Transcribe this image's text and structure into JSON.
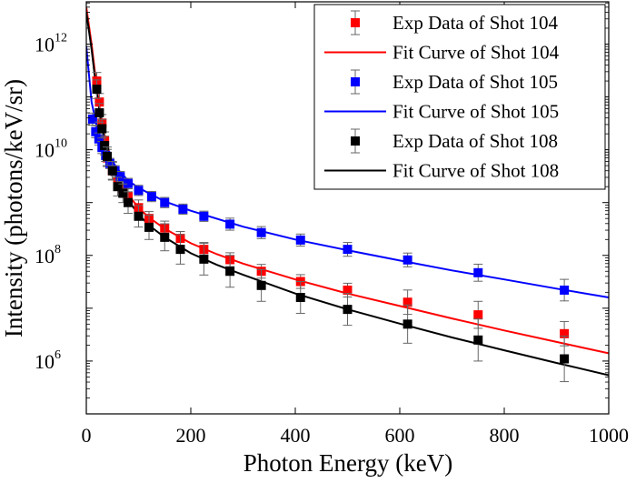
{
  "chart_data": {
    "type": "scatter",
    "xlabel": "Photon Energy (keV)",
    "ylabel": "Intensity (photons/keV/sr)",
    "xlim": [
      0,
      1000
    ],
    "ylim_log10": [
      5,
      12.8
    ],
    "y_scale": "log",
    "x_ticks": [
      0,
      200,
      400,
      600,
      800,
      1000
    ],
    "y_ticks": [
      {
        "value": 1000000,
        "base": "10",
        "exp": "6"
      },
      {
        "value": 100000000,
        "base": "10",
        "exp": "8"
      },
      {
        "value": 10000000000,
        "base": "10",
        "exp": "10"
      },
      {
        "value": 1000000000000,
        "base": "10",
        "exp": "12"
      }
    ],
    "grid": false,
    "legend_position": "top-right",
    "legend": [
      {
        "label": "Exp Data of Shot 104",
        "kind": "marker",
        "series": 0
      },
      {
        "label": "Fit Curve of Shot 104",
        "kind": "line",
        "series": 0
      },
      {
        "label": "Exp Data of Shot 105",
        "kind": "marker",
        "series": 1
      },
      {
        "label": "Fit Curve of Shot 105",
        "kind": "line",
        "series": 1
      },
      {
        "label": "Exp Data of Shot 108",
        "kind": "marker",
        "series": 2
      },
      {
        "label": "Fit Curve of Shot 108",
        "kind": "line",
        "series": 2
      }
    ],
    "series": [
      {
        "color": "#ff0000",
        "x": [
          20,
          25,
          30,
          35,
          40,
          50,
          60,
          70,
          80,
          100,
          120,
          150,
          180,
          225,
          275,
          335,
          410,
          500,
          615,
          750,
          915
        ],
        "y": [
          200000000000.0,
          80000000000.0,
          32000000000.0,
          15000000000.0,
          7000000000.0,
          4000000000.0,
          2500000000.0,
          1800000000.0,
          1300000000.0,
          800000000.0,
          500000000.0,
          330000000.0,
          210000000.0,
          130000000.0,
          83000000.0,
          50000000.0,
          32000000.0,
          22000000.0,
          13000000.0,
          7500000.0,
          3300000.0
        ],
        "fit_x": [
          0,
          10,
          20,
          30,
          40,
          50,
          60,
          80,
          100,
          120,
          150,
          200,
          250,
          300,
          400,
          500,
          600,
          700,
          800,
          900,
          1000
        ],
        "fit_y": [
          5000000000000.0,
          1000000000000.0,
          150000000000.0,
          30000000000.0,
          12000000000.0,
          5500000000.0,
          3000000000.0,
          1400000000.0,
          800000000.0,
          520000000.0,
          320000000.0,
          170000000.0,
          105000000.0,
          70000000.0,
          35000000.0,
          19000000.0,
          11000000.0,
          6400000.0,
          3800000.0,
          2300000.0,
          1400000.0
        ]
      },
      {
        "color": "#0000ff",
        "x": [
          12,
          18,
          24,
          30,
          37,
          45,
          55,
          65,
          80,
          100,
          125,
          150,
          185,
          225,
          275,
          335,
          410,
          500,
          615,
          750,
          915
        ],
        "y": [
          38000000000.0,
          22000000000.0,
          16000000000.0,
          11000000000.0,
          7800000000.0,
          5500000000.0,
          4000000000.0,
          3100000000.0,
          2300000000.0,
          1700000000.0,
          1300000000.0,
          1000000000.0,
          750000000.0,
          550000000.0,
          390000000.0,
          270000000.0,
          195000000.0,
          130000000.0,
          82000000.0,
          47000000.0,
          22000000.0
        ],
        "fit_x": [
          0,
          10,
          20,
          30,
          40,
          60,
          80,
          100,
          150,
          200,
          300,
          400,
          500,
          600,
          700,
          800,
          900,
          1000
        ],
        "fit_y": [
          900000000000.0,
          80000000000.0,
          28000000000.0,
          14000000000.0,
          8500000000.0,
          4300000000.0,
          2600000000.0,
          1900000000.0,
          1050000000.0,
          700000000.0,
          350000000.0,
          200000000.0,
          125000000.0,
          80000000.0,
          52000000.0,
          35000000.0,
          23500000.0,
          16000000.0
        ]
      },
      {
        "color": "#000000",
        "x": [
          20,
          25,
          30,
          35,
          40,
          50,
          60,
          70,
          80,
          100,
          120,
          150,
          180,
          225,
          275,
          335,
          410,
          500,
          615,
          750,
          915
        ],
        "y": [
          140000000000.0,
          50000000000.0,
          25000000000.0,
          12000000000.0,
          7500000000.0,
          4000000000.0,
          2000000000.0,
          1500000000.0,
          1000000000.0,
          550000000.0,
          340000000.0,
          220000000.0,
          130000000.0,
          85000000.0,
          50000000.0,
          27000000.0,
          16000000.0,
          9500000.0,
          5000000.0,
          2500000.0,
          1100000.0
        ],
        "fit_x": [
          0,
          10,
          20,
          30,
          40,
          50,
          60,
          80,
          100,
          120,
          150,
          200,
          250,
          300,
          400,
          500,
          600,
          700,
          800,
          900,
          1000
        ],
        "fit_y": [
          4000000000000.0,
          800000000000.0,
          120000000000.0,
          26000000000.0,
          10000000000.0,
          4800000000.0,
          2500000000.0,
          1100000000.0,
          600000000.0,
          370000000.0,
          220000000.0,
          110000000.0,
          66000000.0,
          43000000.0,
          19000000.0,
          9500000.0,
          5100000.0,
          2800000.0,
          1600000.0,
          920000.0,
          540000.0
        ]
      }
    ],
    "error_factor": [
      [
        1.45,
        1.45,
        1.45,
        1.45,
        1.45,
        1.45,
        1.4,
        1.4,
        1.4,
        1.4,
        1.35,
        1.35,
        1.35,
        1.35,
        1.35,
        1.35,
        1.35,
        1.35,
        1.7,
        1.8,
        1.7
      ],
      [
        1.3,
        1.3,
        1.3,
        1.3,
        1.3,
        1.25,
        1.25,
        1.25,
        1.25,
        1.25,
        1.25,
        1.25,
        1.25,
        1.25,
        1.3,
        1.3,
        1.3,
        1.35,
        1.35,
        1.45,
        1.6
      ],
      [
        1.5,
        1.5,
        1.5,
        1.5,
        1.5,
        1.5,
        1.5,
        1.5,
        1.6,
        1.6,
        1.7,
        1.8,
        1.9,
        2.0,
        2.0,
        2.0,
        2.0,
        2.0,
        2.3,
        2.5,
        2.7
      ]
    ]
  }
}
